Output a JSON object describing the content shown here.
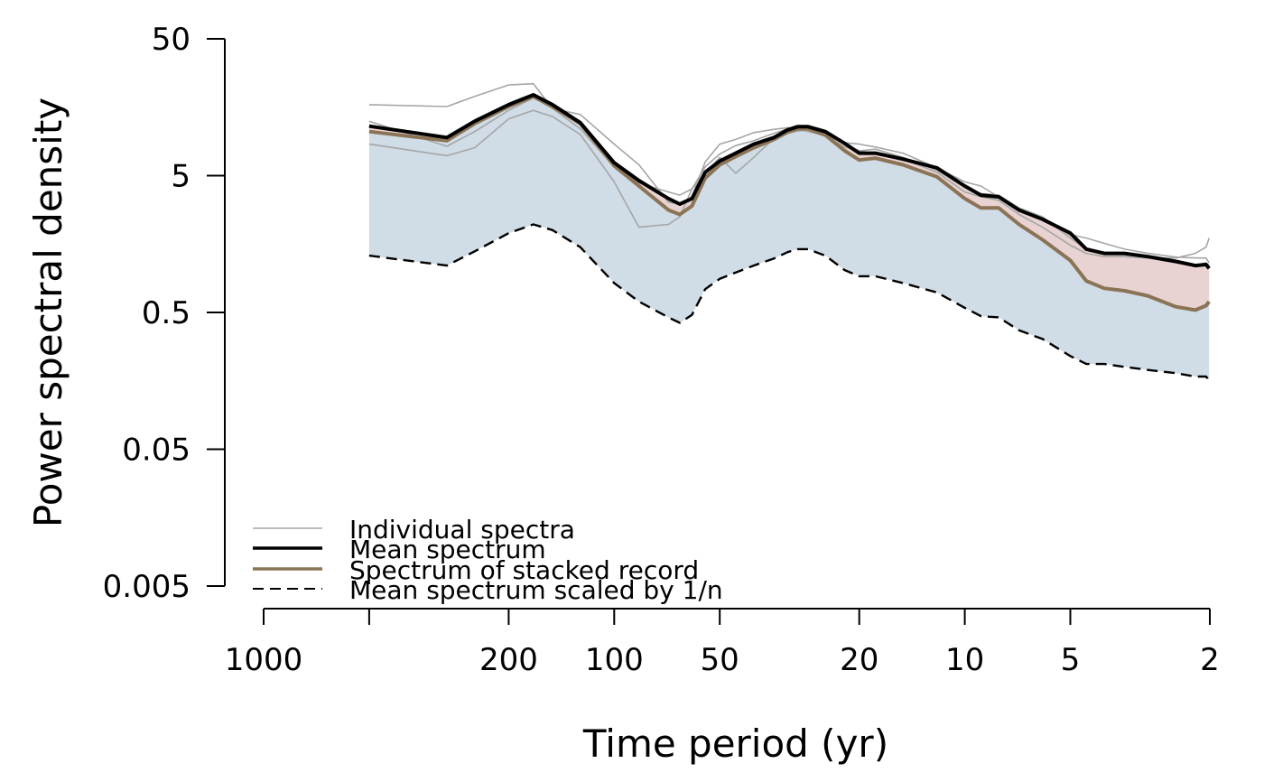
{
  "chart_data": {
    "type": "line",
    "title": "",
    "xlabel": "Time period (yr)",
    "ylabel": "Power spectral density",
    "x_scale": "log-reversed",
    "y_scale": "log",
    "xlim": [
      1000,
      2
    ],
    "ylim": [
      0.005,
      50
    ],
    "x_ticks": [
      1000,
      200,
      100,
      50,
      20,
      10,
      5,
      2
    ],
    "x_tick_labels": [
      "1000",
      "200",
      "100",
      "50",
      "20",
      "10",
      "5",
      "2"
    ],
    "x_minor_ticks": [
      500
    ],
    "y_ticks": [
      50,
      5,
      0.5,
      0.05,
      0.005
    ],
    "y_tick_labels": [
      "50",
      "5",
      "0.5",
      "0.05",
      "0.005"
    ],
    "grid": false,
    "legend_position": "bottom-left",
    "colors": {
      "individual": "#a6a6a6",
      "mean": "#000000",
      "stacked": "#8b7355",
      "scaled": "#000000",
      "band_blue": "#d0dce6",
      "band_red": "#e8d2d2"
    },
    "legend": [
      {
        "label": "Individual spectra",
        "style": "thin-gray"
      },
      {
        "label": "Mean spectrum",
        "style": "thick-black"
      },
      {
        "label": "Spectrum of stacked record",
        "style": "thick-brown"
      },
      {
        "label": "Mean spectrum scaled by 1/n",
        "style": "dashed-black"
      }
    ],
    "series": [
      {
        "key": "mean",
        "x": [
          500,
          300,
          250,
          200,
          170,
          150,
          125,
          100,
          85,
          70,
          65,
          60,
          55,
          50,
          45,
          40,
          35,
          32,
          30,
          28,
          25,
          22,
          20,
          18,
          15,
          12,
          10,
          9,
          8,
          7,
          6,
          5,
          4.5,
          4,
          3.5,
          3,
          2.5,
          2.2,
          2.05,
          2.01
        ],
        "y": [
          11.5,
          9.5,
          12.5,
          16.5,
          19.5,
          16.5,
          12.2,
          6.2,
          4.6,
          3.4,
          3.1,
          3.4,
          5.3,
          6.4,
          7.3,
          8.5,
          9.5,
          10.8,
          11.4,
          11.4,
          10.5,
          8.6,
          7.3,
          7.3,
          6.6,
          5.7,
          4.2,
          3.6,
          3.5,
          2.8,
          2.4,
          1.9,
          1.45,
          1.35,
          1.35,
          1.28,
          1.18,
          1.1,
          1.12,
          1.05
        ]
      },
      {
        "key": "stacked",
        "x": [
          500,
          300,
          250,
          200,
          170,
          150,
          125,
          100,
          85,
          70,
          65,
          60,
          55,
          50,
          45,
          40,
          35,
          32,
          30,
          28,
          25,
          22,
          20,
          18,
          15,
          12,
          10,
          9,
          8,
          7,
          6,
          5,
          4.5,
          4,
          3.5,
          3,
          2.5,
          2.2,
          2.05,
          2.01
        ],
        "y": [
          10.5,
          9.0,
          12.0,
          16.0,
          19.0,
          16.0,
          12.0,
          5.9,
          4.2,
          2.8,
          2.6,
          3.0,
          4.8,
          6.0,
          6.9,
          8.0,
          9.2,
          10.4,
          11.0,
          11.0,
          9.9,
          7.6,
          6.5,
          6.7,
          6.0,
          4.9,
          3.4,
          2.9,
          2.9,
          2.2,
          1.7,
          1.2,
          0.85,
          0.75,
          0.72,
          0.66,
          0.55,
          0.52,
          0.56,
          0.6
        ]
      },
      {
        "key": "scaled",
        "x": [
          500,
          300,
          250,
          200,
          170,
          150,
          125,
          100,
          85,
          70,
          65,
          60,
          55,
          50,
          45,
          40,
          35,
          32,
          30,
          28,
          25,
          22,
          20,
          18,
          15,
          12,
          10,
          9,
          8,
          7,
          6,
          5,
          4.5,
          4,
          3.5,
          3,
          2.5,
          2.2,
          2.05,
          2.01
        ],
        "y": [
          1.3,
          1.1,
          1.4,
          1.9,
          2.2,
          2.0,
          1.5,
          0.82,
          0.6,
          0.46,
          0.42,
          0.48,
          0.74,
          0.88,
          0.98,
          1.1,
          1.24,
          1.38,
          1.45,
          1.45,
          1.3,
          1.02,
          0.92,
          0.92,
          0.82,
          0.7,
          0.54,
          0.47,
          0.46,
          0.37,
          0.32,
          0.24,
          0.21,
          0.21,
          0.2,
          0.19,
          0.18,
          0.17,
          0.17,
          0.16
        ]
      },
      {
        "key": "ind1",
        "x": [
          500,
          300,
          250,
          200,
          170,
          150,
          125,
          100,
          85,
          70,
          65,
          60,
          55,
          50,
          45,
          40,
          35,
          32,
          30,
          28,
          25,
          22,
          20,
          18,
          15,
          12,
          10,
          9,
          8,
          7,
          6,
          5,
          4.5,
          4,
          3.5,
          3,
          2.5,
          2.2,
          2.05,
          2.01
        ],
        "y": [
          16.5,
          16.0,
          19.0,
          23.0,
          23.5,
          15.5,
          14.0,
          8.5,
          6.0,
          3.2,
          3.1,
          3.5,
          6.3,
          8.5,
          9.2,
          10.3,
          10.9,
          11.2,
          11.0,
          10.5,
          9.8,
          8.7,
          8.5,
          8.1,
          7.3,
          5.7,
          4.5,
          4.2,
          3.5,
          2.9,
          2.4,
          1.85,
          1.75,
          1.6,
          1.45,
          1.35,
          1.27,
          1.25,
          1.25,
          1.15
        ]
      },
      {
        "key": "ind2",
        "x": [
          500,
          300,
          250,
          200,
          170,
          150,
          125,
          100,
          85,
          70,
          65,
          60,
          55,
          50,
          45,
          40,
          35,
          32,
          30,
          28,
          25,
          22,
          20,
          18,
          15,
          12,
          10,
          9,
          8,
          7,
          6,
          5,
          4.5,
          4,
          3.5,
          3,
          2.5,
          2.2,
          2.05,
          2.01
        ],
        "y": [
          8.5,
          7.0,
          8.0,
          13.0,
          15.0,
          13.5,
          10.0,
          4.5,
          2.1,
          2.2,
          2.5,
          4.0,
          5.2,
          6.8,
          5.2,
          6.8,
          9.4,
          10.2,
          10.6,
          10.8,
          9.8,
          8.1,
          7.6,
          7.2,
          6.6,
          5.3,
          3.8,
          3.5,
          3.3,
          2.6,
          2.1,
          1.55,
          1.35,
          1.28,
          1.28,
          1.25,
          1.15,
          1.1,
          1.15,
          1.1
        ]
      },
      {
        "key": "ind3",
        "x": [
          500,
          300,
          250,
          200,
          170,
          150,
          125,
          100,
          85,
          70,
          65,
          60,
          55,
          50,
          45,
          40,
          35,
          32,
          30,
          28,
          25,
          22,
          20,
          18,
          15,
          12,
          10,
          9,
          8,
          7,
          6,
          5,
          4.5,
          4,
          3.5,
          3,
          2.5,
          2.2,
          2.05,
          2.01
        ],
        "y": [
          12.5,
          8.2,
          10.5,
          15.0,
          18.5,
          15.5,
          11.0,
          5.8,
          4.4,
          3.8,
          3.6,
          4.0,
          5.8,
          7.2,
          8.3,
          9.0,
          10.2,
          11.0,
          11.4,
          11.2,
          10.3,
          8.5,
          7.6,
          7.8,
          6.8,
          5.5,
          4.1,
          3.7,
          3.6,
          2.9,
          2.5,
          1.75,
          1.45,
          1.35,
          1.32,
          1.25,
          1.25,
          1.35,
          1.5,
          1.75
        ]
      }
    ]
  }
}
